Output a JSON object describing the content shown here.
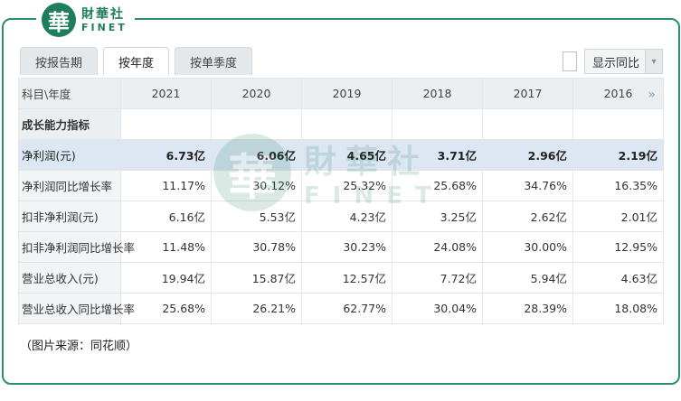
{
  "brand": {
    "logo_char": "華",
    "name_cn": "財華社",
    "name_en": "FINET"
  },
  "tabs": [
    {
      "label": "按报告期",
      "active": false
    },
    {
      "label": "按年度",
      "active": true
    },
    {
      "label": "按单季度",
      "active": false
    }
  ],
  "toggle": {
    "label": "显示同比",
    "checked": false
  },
  "table": {
    "header_label": "科目\\年度",
    "years": [
      "2021",
      "2020",
      "2019",
      "2018",
      "2017",
      "2016"
    ],
    "scroll_arrow": "»",
    "section_title": "成长能力指标",
    "rows": [
      {
        "label": "净利润(元)",
        "values": [
          "6.73亿",
          "6.06亿",
          "4.65亿",
          "3.71亿",
          "2.96亿",
          "2.19亿"
        ],
        "highlight": true
      },
      {
        "label": "净利润同比增长率",
        "values": [
          "11.17%",
          "30.12%",
          "25.32%",
          "25.68%",
          "34.76%",
          "16.35%"
        ]
      },
      {
        "label": "扣非净利润(元)",
        "values": [
          "6.16亿",
          "5.53亿",
          "4.23亿",
          "3.25亿",
          "2.62亿",
          "2.01亿"
        ]
      },
      {
        "label": "扣非净利润同比增长率",
        "values": [
          "11.48%",
          "30.78%",
          "30.23%",
          "24.08%",
          "30.00%",
          "12.95%"
        ]
      },
      {
        "label": "营业总收入(元)",
        "values": [
          "19.94亿",
          "15.87亿",
          "12.57亿",
          "7.72亿",
          "5.94亿",
          "4.63亿"
        ]
      },
      {
        "label": "营业总收入同比增长率",
        "values": [
          "25.68%",
          "26.21%",
          "62.77%",
          "30.04%",
          "28.39%",
          "18.08%"
        ]
      }
    ]
  },
  "source_note": "（图片来源：同花顺）",
  "colors": {
    "brand_green": "#1e7d5b",
    "frame_green": "#2a8f6b",
    "highlight_row": "#dde7f3"
  }
}
